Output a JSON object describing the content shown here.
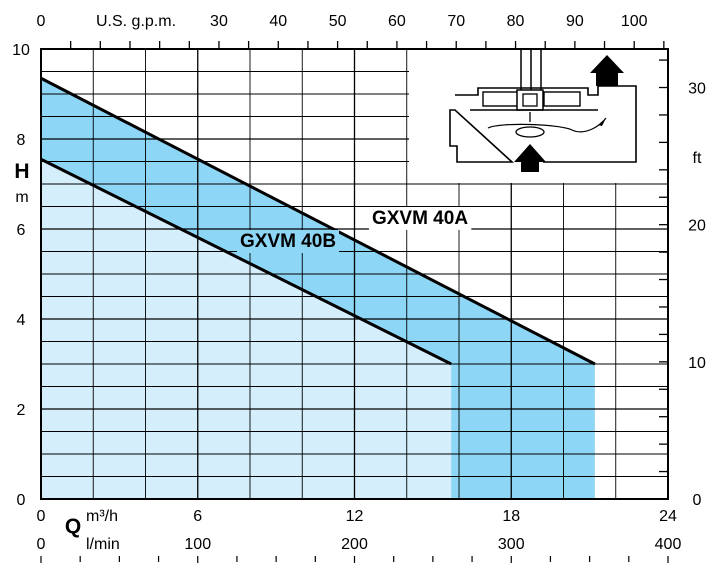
{
  "chart_data": {
    "type": "area",
    "series": [
      {
        "name": "GXVM 40A",
        "x": [
          0,
          21.2
        ],
        "y": [
          9.35,
          3.0
        ],
        "cutoff": 21.2
      },
      {
        "name": "GXVM 40B",
        "x": [
          0,
          15.7
        ],
        "y": [
          7.55,
          3.0
        ],
        "cutoff": 15.7
      }
    ],
    "x_primary": {
      "label": "m³/h",
      "range": [
        0,
        24
      ],
      "tick_labels": [
        "0",
        "6",
        "12",
        "18",
        "24"
      ],
      "tick_values": [
        0,
        6,
        12,
        18,
        24
      ]
    },
    "x_secondary_bottom": {
      "label": "l/min",
      "range": [
        0,
        400
      ],
      "tick_labels": [
        "0",
        "100",
        "200",
        "300",
        "400"
      ],
      "tick_values": [
        0,
        100,
        200,
        300,
        400
      ]
    },
    "x_top": {
      "label": "U.S. g.p.m.",
      "range": [
        0,
        105.7
      ],
      "tick_labels": [
        "0",
        "30",
        "40",
        "50",
        "60",
        "70",
        "80",
        "90",
        "100"
      ],
      "tick_values": [
        0,
        30,
        40,
        50,
        60,
        70,
        80,
        90,
        100
      ]
    },
    "y_primary": {
      "label": "H",
      "unit": "m",
      "range": [
        0,
        10
      ],
      "tick_labels": [
        "0",
        "2",
        "4",
        "6",
        "8",
        "10"
      ],
      "tick_values": [
        0,
        2,
        4,
        6,
        8,
        10
      ]
    },
    "y_secondary": {
      "label": "ft",
      "range": [
        0,
        32.8
      ],
      "tick_labels": [
        "0",
        "10",
        "20",
        "30"
      ],
      "tick_values": [
        0,
        10,
        20,
        30
      ]
    },
    "x_axis_symbol": "Q",
    "grid": true,
    "colors": {
      "band": "#8ed6f5",
      "lower": "#d5eefb",
      "line": "#000000"
    }
  }
}
